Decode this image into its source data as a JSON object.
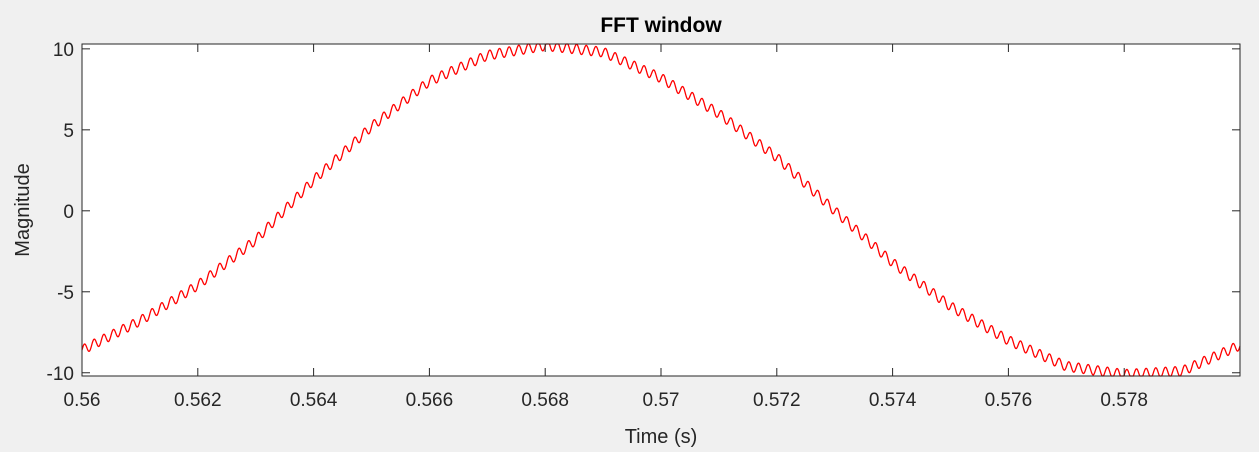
{
  "chart_data": {
    "type": "line",
    "title": "FFT window",
    "xlabel": "Time (s)",
    "ylabel": "Magnitude",
    "xlim": [
      0.56,
      0.58
    ],
    "ylim": [
      -10.2,
      10.3
    ],
    "xticks": [
      0.56,
      0.562,
      0.564,
      0.566,
      0.568,
      0.57,
      0.572,
      0.574,
      0.576,
      0.578
    ],
    "xtick_labels": [
      "0.56",
      "0.562",
      "0.564",
      "0.566",
      "0.568",
      "0.57",
      "0.572",
      "0.574",
      "0.576",
      "0.578"
    ],
    "yticks": [
      -10,
      -5,
      0,
      5,
      10
    ],
    "ytick_labels": [
      "-10",
      "-5",
      "0",
      "5",
      "10"
    ],
    "grid": false,
    "series": [
      {
        "color": "#ff0000",
        "x": [
          0.56,
          0.561,
          0.562,
          0.563,
          0.564,
          0.565,
          0.566,
          0.567,
          0.568,
          0.569,
          0.57,
          0.571,
          0.572,
          0.573,
          0.574,
          0.575,
          0.576,
          0.577,
          0.578,
          0.579,
          0.58
        ],
        "y": [
          -8.6,
          -6.8,
          -4.6,
          -1.8,
          1.9,
          5.2,
          8.0,
          9.6,
          10.2,
          9.8,
          8.2,
          6.0,
          3.3,
          0.0,
          -3.2,
          -5.9,
          -8.0,
          -9.6,
          -10.1,
          -9.9,
          -8.3
        ],
        "ripple_amplitude": 0.3,
        "ripple_period": 0.0001667
      }
    ]
  }
}
